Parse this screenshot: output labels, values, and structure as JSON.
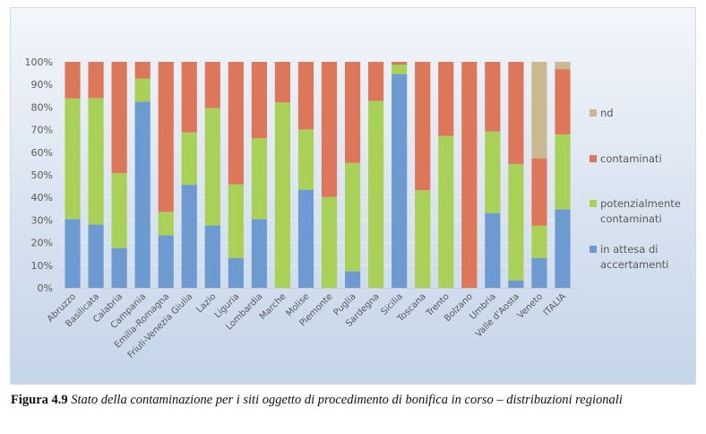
{
  "chart_data": {
    "type": "bar",
    "stacked": true,
    "percent": true,
    "title": "",
    "xlabel": "",
    "ylabel": "",
    "ylim": [
      0,
      100
    ],
    "yticks": [
      "0%",
      "10%",
      "20%",
      "30%",
      "40%",
      "50%",
      "60%",
      "70%",
      "80%",
      "90%",
      "100%"
    ],
    "grid": true,
    "legend_position": "right",
    "categories": [
      "Abruzzo",
      "Basilicata",
      "Calabria",
      "Campania",
      "Emilia-Romagna",
      "Friuli-Venezia Giulia",
      "Lazio",
      "Liguria",
      "Lombardia",
      "Marche",
      "Molise",
      "Piemonte",
      "Puglia",
      "Sardegna",
      "Sicilia",
      "Toscana",
      "Trento",
      "Bolzano",
      "Umbria",
      "Valle d'Aosta",
      "Veneto",
      "ITALIA"
    ],
    "series": [
      {
        "name": "in attesa di accertamenti",
        "color": "#6d9bd1",
        "values": [
          30.4,
          28,
          17.6,
          82.4,
          23.2,
          45.6,
          27.6,
          13.2,
          30.4,
          0,
          43.4,
          0,
          7.3,
          0,
          94.6,
          0,
          0,
          0,
          33.1,
          3.3,
          13.2,
          34.8
        ]
      },
      {
        "name": "potenzialmente contaminati",
        "color": "#aad157",
        "values": [
          53.4,
          56,
          33.2,
          10.2,
          10.4,
          23.2,
          52,
          32.6,
          35.8,
          82.1,
          26.7,
          40.2,
          48.0,
          82.7,
          4.2,
          43.2,
          67.2,
          0,
          36.1,
          51.5,
          14.3,
          33.1
        ]
      },
      {
        "name": "contaminati",
        "color": "#dd775a",
        "values": [
          16.2,
          16,
          49.2,
          7.4,
          66.4,
          31.2,
          20.4,
          54.2,
          33.8,
          17.9,
          29.9,
          59.8,
          44.7,
          17.3,
          1.2,
          56.8,
          32.8,
          100,
          30.8,
          45.2,
          29.8,
          28.9
        ]
      },
      {
        "name": "nd",
        "color": "#c9b991",
        "values": [
          0,
          0,
          0,
          0,
          0,
          0,
          0,
          0,
          0,
          0,
          0,
          0,
          0,
          0,
          0,
          0,
          0,
          0,
          0,
          0,
          42.7,
          3.2
        ]
      }
    ],
    "legend": [
      {
        "name": "nd",
        "lines": [
          "nd"
        ],
        "color": "#c9b991"
      },
      {
        "name": "contaminati",
        "lines": [
          "contaminati"
        ],
        "color": "#dd775a"
      },
      {
        "name": "potenzialmente contaminati",
        "lines": [
          "potenzialmente",
          "contaminati"
        ],
        "color": "#aad157"
      },
      {
        "name": "in attesa di accertamenti",
        "lines": [
          "in attesa di",
          "accertamenti"
        ],
        "color": "#6d9bd1"
      }
    ]
  },
  "caption": {
    "label": "Figura 4.9",
    "text": " Stato della contaminazione per i siti oggetto di procedimento di bonifica in corso – distribuzioni regionali"
  }
}
